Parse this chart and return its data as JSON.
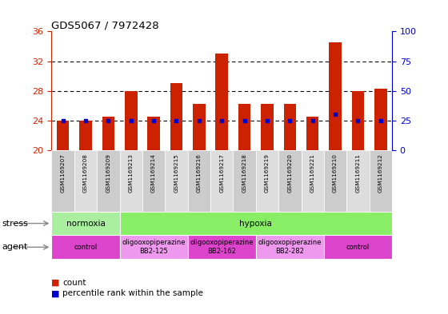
{
  "title": "GDS5067 / 7972428",
  "samples": [
    "GSM1169207",
    "GSM1169208",
    "GSM1169209",
    "GSM1169213",
    "GSM1169214",
    "GSM1169215",
    "GSM1169216",
    "GSM1169217",
    "GSM1169218",
    "GSM1169219",
    "GSM1169220",
    "GSM1169221",
    "GSM1169210",
    "GSM1169211",
    "GSM1169212"
  ],
  "counts": [
    24.0,
    24.0,
    24.5,
    28.0,
    24.5,
    29.0,
    26.2,
    33.0,
    26.2,
    26.3,
    26.3,
    24.5,
    34.5,
    28.0,
    28.3
  ],
  "percentiles": [
    25,
    25,
    25,
    25,
    25,
    25,
    25,
    25,
    25,
    25,
    25,
    25,
    30,
    25,
    25
  ],
  "ylim_left": [
    20,
    36
  ],
  "yticks_left": [
    20,
    24,
    28,
    32,
    36
  ],
  "yticks_right": [
    0,
    25,
    50,
    75,
    100
  ],
  "bar_bottom": 20,
  "bar_color": "#cc2200",
  "dot_color": "#0000cc",
  "stress_groups": [
    {
      "label": "normoxia",
      "start": 0,
      "end": 3,
      "color": "#aaeea0"
    },
    {
      "label": "hypoxia",
      "start": 3,
      "end": 15,
      "color": "#88ee66"
    }
  ],
  "agent_groups": [
    {
      "label": "control",
      "start": 0,
      "end": 3,
      "color": "#dd44cc"
    },
    {
      "label": "oligooxopiperazine\nBB2-125",
      "start": 3,
      "end": 6,
      "color": "#ee99ee"
    },
    {
      "label": "oligooxopiperazine\nBB2-162",
      "start": 6,
      "end": 9,
      "color": "#dd44cc"
    },
    {
      "label": "oligooxopiperazine\nBB2-282",
      "start": 9,
      "end": 12,
      "color": "#ee99ee"
    },
    {
      "label": "control",
      "start": 12,
      "end": 15,
      "color": "#dd44cc"
    }
  ],
  "stress_label": "stress",
  "agent_label": "agent",
  "legend_count_label": "count",
  "legend_pct_label": "percentile rank within the sample",
  "bg_color": "#ffffff",
  "tick_color_left": "#cc2200",
  "tick_color_right": "#0000cc",
  "grid_dotted_at": [
    24,
    28,
    32
  ],
  "sample_cell_color": "#cccccc",
  "sample_cell_color_alt": "#dddddd"
}
